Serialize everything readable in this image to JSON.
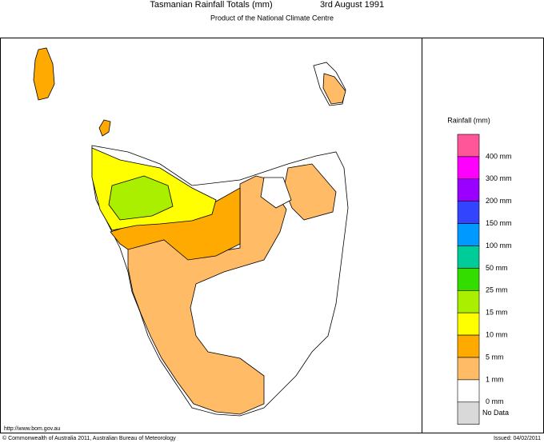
{
  "header": {
    "title": "Tasmanian Rainfall Totals (mm)",
    "date": "3rd August 1991",
    "subtitle": "Product of the National Climate Centre"
  },
  "legend": {
    "title": "Rainfall (mm)",
    "colors": [
      "#ff5599",
      "#ff00ff",
      "#9900ff",
      "#3344ff",
      "#0099ff",
      "#00cc99",
      "#33dd00",
      "#aaee00",
      "#ffff00",
      "#ffaa00",
      "#ffbb66",
      "#ffffff",
      "#d9d9d9"
    ],
    "labels": [
      "400 mm",
      "300 mm",
      "200 mm",
      "150 mm",
      "100 mm",
      "50 mm",
      "25 mm",
      "15 mm",
      "10 mm",
      "5 mm",
      "1 mm",
      "0 mm"
    ],
    "no_data": "No Data"
  },
  "footer": {
    "url": "http://www.bom.gov.au",
    "copyright": "© Commonwealth of Australia 2011, Australian Bureau of Meteorology",
    "issued": "Issued: 04/02/2011"
  }
}
